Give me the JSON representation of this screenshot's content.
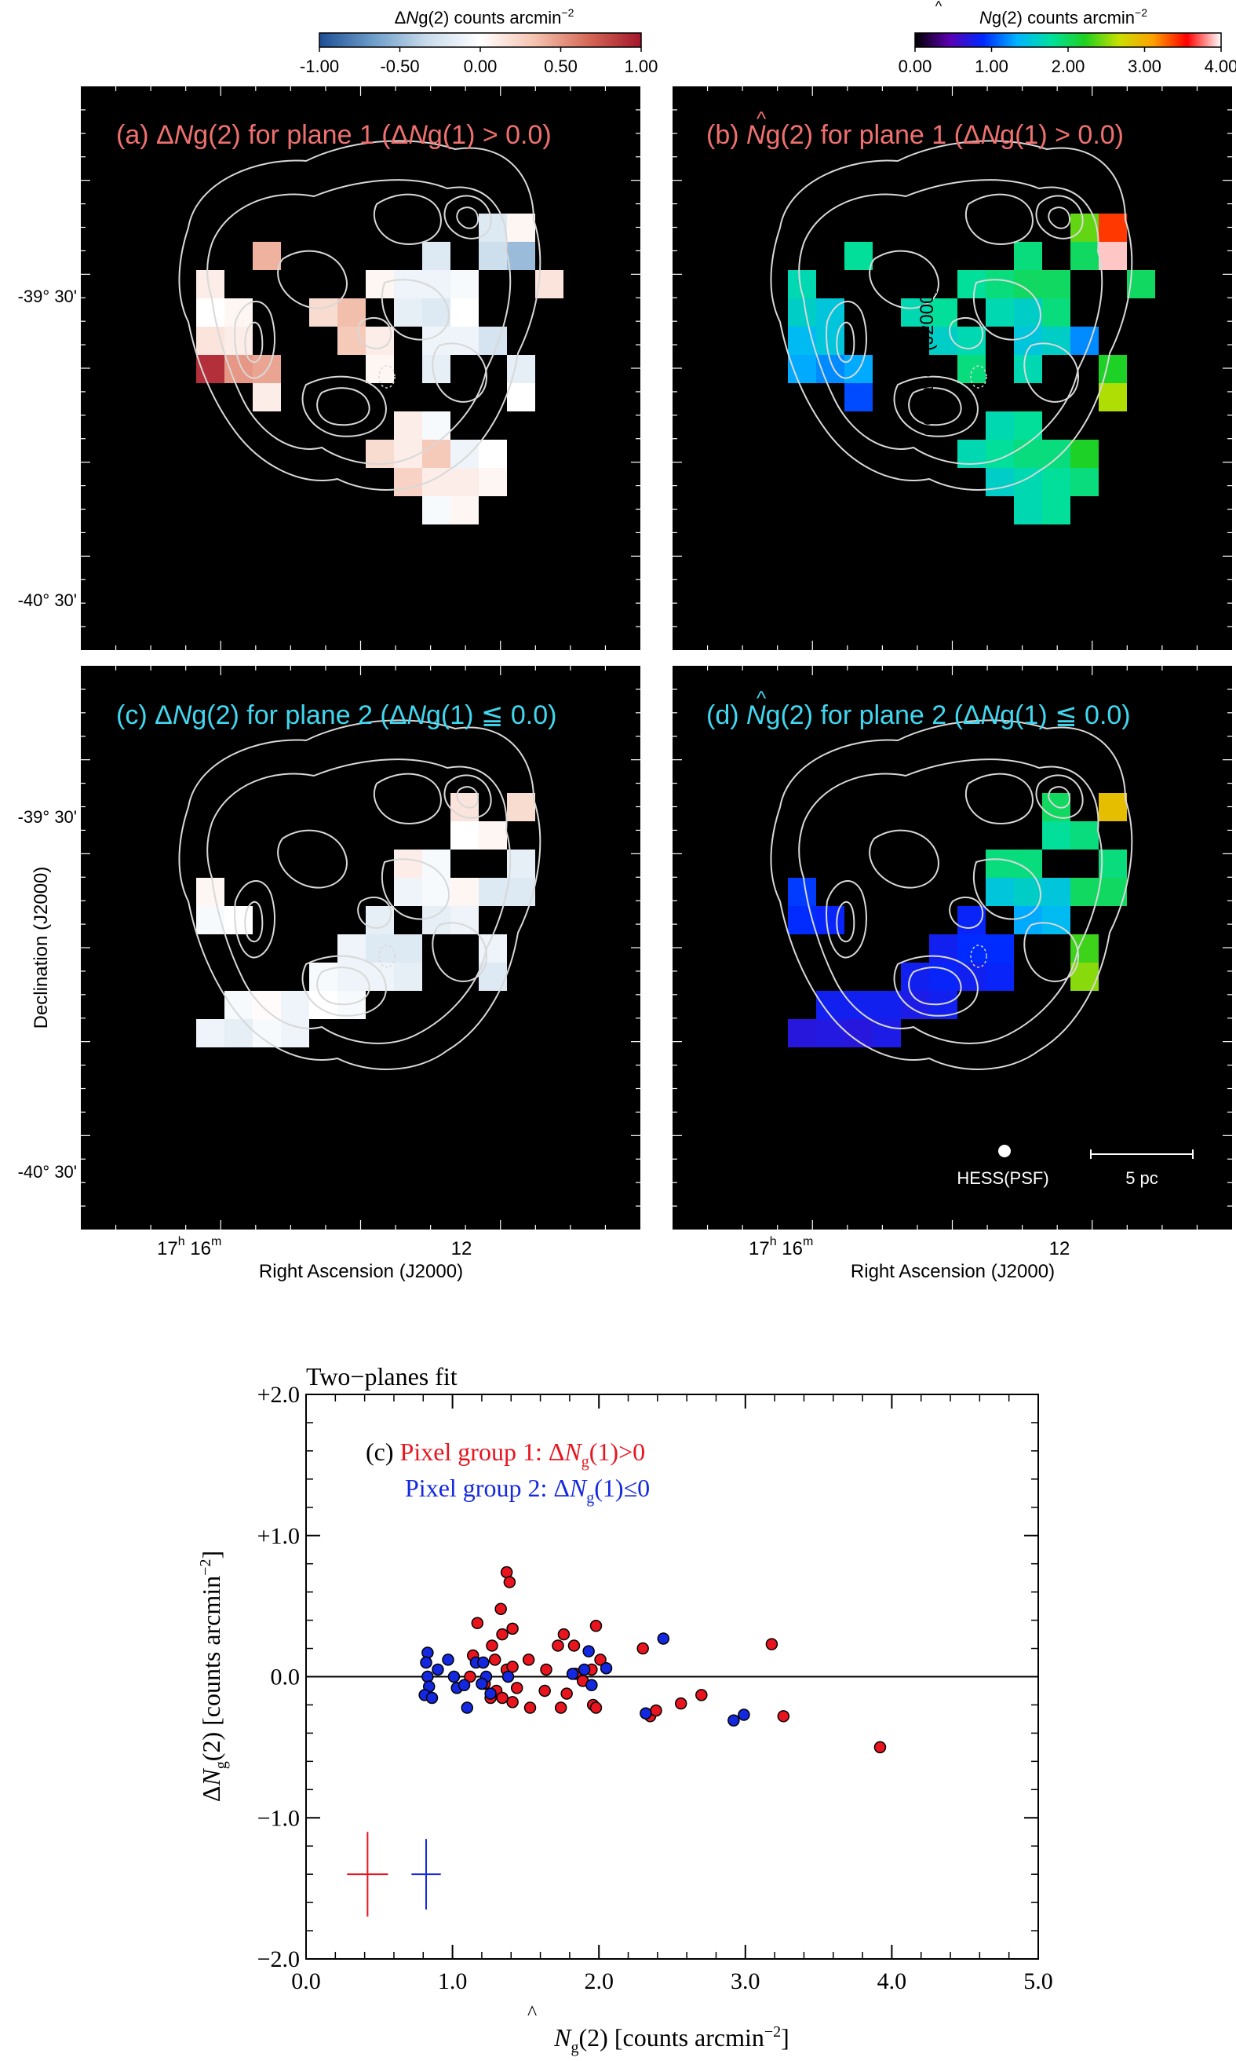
{
  "colorbars": {
    "delta": {
      "title_delta": "Δ",
      "title_N": "N",
      "title_rest": "g(2) counts arcmin",
      "title_sup": "−2",
      "ticks": [
        "-1.00",
        "-0.50",
        "0.00",
        "0.50",
        "1.00"
      ],
      "range": [
        -1.0,
        1.0
      ],
      "stops": [
        "#1e4f96",
        "#6d9dc9",
        "#c7dbeb",
        "#ffffff",
        "#f5c4b1",
        "#d66a58",
        "#a4162b"
      ]
    },
    "nhat": {
      "title_hat": "^",
      "title_N": "N",
      "title_rest": "g(2) counts arcmin",
      "title_sup": "−2",
      "ticks": [
        "0.00",
        "1.00",
        "2.00",
        "3.00",
        "4.00"
      ],
      "range": [
        0.0,
        4.0
      ],
      "stops": [
        "#000000",
        "#5b00b0",
        "#0028ff",
        "#00b4ff",
        "#00e0a0",
        "#20d020",
        "#c8e000",
        "#ffa000",
        "#ff0000",
        "#ffffff"
      ]
    }
  },
  "colors": {
    "panel_bg": "#000000",
    "group1": "#e8141e",
    "group2": "#1428e0",
    "label_top": "#f07070",
    "label_bottom": "#40d8f0"
  },
  "panels": {
    "a": {
      "prefix": "(a) ",
      "delta": "Δ",
      "N": "N",
      "rest": "g(2) for plane 1 (",
      "delta2": "Δ",
      "N2": "N",
      "rest2": "g(1) > 0.0)"
    },
    "b": {
      "prefix": "(b) ",
      "hat": "^",
      "N": "N",
      "rest": "g(2) for plane 1 (",
      "delta2": "Δ",
      "N2": "N",
      "rest2": "g(1) > 0.0)"
    },
    "c": {
      "prefix": "(c) ",
      "delta": "Δ",
      "N": "N",
      "rest": "g(2) for plane 2 (",
      "delta2": "Δ",
      "N2": "N",
      "rest2": "g(1) ≦ 0.0)"
    },
    "d": {
      "prefix": "(d) ",
      "hat": "^",
      "N": "N",
      "rest": "g(2) for plane 2 (",
      "delta2": "Δ",
      "N2": "N",
      "rest2": "g(1) ≦ 0.0)"
    }
  },
  "map_axes": {
    "ylabel": "Declination (J2000)",
    "xlabel": "Right Ascension (J2000)",
    "dec_ticks": [
      "-39° 30'",
      "-40° 30'"
    ],
    "ra_tick1_h": "17",
    "ra_tick1_hsup": "h",
    "ra_tick1_m": " 16",
    "ra_tick1_msup": "m",
    "ra_tick2": "12"
  },
  "annotations": {
    "psf_label": "HESS(PSF)",
    "scale_label": "5 pc"
  },
  "chart_data": {
    "type": "scatter",
    "title": "Two−planes fit",
    "legend": {
      "panel_tag": "(c) ",
      "group1_text": "Pixel group 1: ",
      "group1_cond": "(1)>0",
      "group2_text": "Pixel group 2: ",
      "group2_cond": "(1)≤0",
      "delta": "Δ",
      "N": "N",
      "sub": "g"
    },
    "xlabel": "(2) [counts arcmin",
    "xlabel_sup": "−2",
    "xlabel_end": "]",
    "ylabel": "(2) [counts arcmin",
    "ylabel_sup": "−2",
    "ylabel_end": "]",
    "xlim": [
      0.0,
      5.0
    ],
    "ylim": [
      -2.0,
      2.0
    ],
    "xticks": [
      "0.0",
      "1.0",
      "2.0",
      "3.0",
      "4.0",
      "5.0"
    ],
    "yticks": [
      "−2.0",
      "−1.0",
      "0.0",
      "+1.0",
      "+2.0"
    ],
    "series": [
      {
        "name": "Pixel group 1",
        "color": "#e8141e",
        "points": [
          [
            1.37,
            0.74
          ],
          [
            1.39,
            0.67
          ],
          [
            1.33,
            0.48
          ],
          [
            1.17,
            0.38
          ],
          [
            1.34,
            0.3
          ],
          [
            1.41,
            0.34
          ],
          [
            1.76,
            0.3
          ],
          [
            1.98,
            0.36
          ],
          [
            1.83,
            0.22
          ],
          [
            1.27,
            0.22
          ],
          [
            1.14,
            0.15
          ],
          [
            1.29,
            0.12
          ],
          [
            1.72,
            0.22
          ],
          [
            1.52,
            0.12
          ],
          [
            1.64,
            0.05
          ],
          [
            1.84,
            0.02
          ],
          [
            2.01,
            0.12
          ],
          [
            2.3,
            0.2
          ],
          [
            3.18,
            0.23
          ],
          [
            1.12,
            0.0
          ],
          [
            1.22,
            -0.05
          ],
          [
            1.37,
            0.05
          ],
          [
            1.41,
            0.07
          ],
          [
            1.3,
            -0.1
          ],
          [
            1.34,
            -0.15
          ],
          [
            1.41,
            -0.18
          ],
          [
            1.44,
            -0.08
          ],
          [
            1.53,
            -0.22
          ],
          [
            1.63,
            -0.1
          ],
          [
            1.74,
            -0.22
          ],
          [
            1.78,
            -0.12
          ],
          [
            1.89,
            -0.03
          ],
          [
            1.96,
            -0.2
          ],
          [
            1.98,
            -0.22
          ],
          [
            2.35,
            -0.28
          ],
          [
            2.39,
            -0.24
          ],
          [
            2.56,
            -0.19
          ],
          [
            2.7,
            -0.13
          ],
          [
            3.26,
            -0.28
          ],
          [
            3.92,
            -0.5
          ],
          [
            1.95,
            0.05
          ],
          [
            1.26,
            -0.15
          ]
        ]
      },
      {
        "name": "Pixel group 2",
        "color": "#1428e0",
        "points": [
          [
            0.83,
            0.17
          ],
          [
            0.82,
            0.1
          ],
          [
            0.83,
            0.0
          ],
          [
            0.84,
            -0.07
          ],
          [
            0.81,
            -0.13
          ],
          [
            0.86,
            -0.15
          ],
          [
            0.9,
            0.05
          ],
          [
            0.97,
            0.12
          ],
          [
            1.01,
            0.0
          ],
          [
            1.03,
            -0.08
          ],
          [
            1.08,
            -0.06
          ],
          [
            1.1,
            -0.22
          ],
          [
            1.16,
            0.1
          ],
          [
            1.21,
            0.1
          ],
          [
            1.23,
            0.0
          ],
          [
            1.2,
            -0.05
          ],
          [
            1.26,
            -0.12
          ],
          [
            1.38,
            0.0
          ],
          [
            1.82,
            0.02
          ],
          [
            1.9,
            0.05
          ],
          [
            1.93,
            0.18
          ],
          [
            1.95,
            -0.06
          ],
          [
            2.05,
            0.06
          ],
          [
            2.44,
            0.27
          ],
          [
            2.32,
            -0.26
          ],
          [
            2.92,
            -0.31
          ],
          [
            2.99,
            -0.27
          ]
        ]
      }
    ],
    "error_bars": [
      {
        "color": "#e8141e",
        "x": 0.42,
        "y": -1.4,
        "xerr": 0.14,
        "yerr": 0.3
      },
      {
        "color": "#1428e0",
        "x": 0.82,
        "y": -1.4,
        "xerr": 0.1,
        "yerr": 0.25
      }
    ]
  }
}
